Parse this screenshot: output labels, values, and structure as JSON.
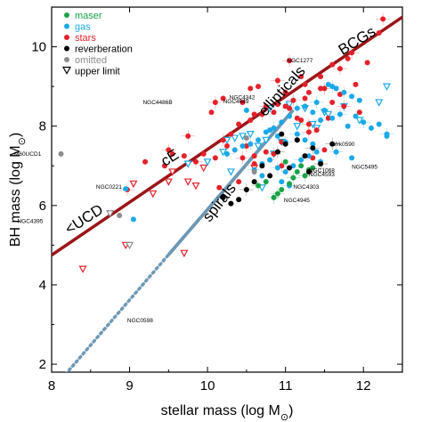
{
  "chart_data": {
    "type": "scatter",
    "xlabel": "stellar mass (log M",
    "ylabel": "BH mass (log M",
    "axis_unit_symbol": "⊙",
    "axis_unit_close": ")",
    "xlim": [
      8,
      12.5
    ],
    "ylim": [
      1.8,
      11
    ],
    "xticks": [
      8,
      9,
      10,
      11,
      12
    ],
    "yticks": [
      2,
      4,
      6,
      8,
      10
    ],
    "grid": false,
    "legend": {
      "position": "top-left",
      "entries": [
        {
          "label": "maser",
          "color": "#1aa34a",
          "marker": "circle"
        },
        {
          "label": "gas",
          "color": "#1aa9e8",
          "marker": "circle"
        },
        {
          "label": "stars",
          "color": "#e5202a",
          "marker": "circle"
        },
        {
          "label": "reverberation",
          "color": "#000000",
          "marker": "circle"
        },
        {
          "label": "omitted",
          "color": "#8c8c8c",
          "marker": "circle"
        },
        {
          "label": "upper limit",
          "color": "#000000",
          "marker": "triangle"
        }
      ]
    },
    "colors": {
      "maser": "#1aa34a",
      "gas": "#1aa9e8",
      "stars": "#e5202a",
      "reverberation": "#000000",
      "omitted": "#8c8c8c",
      "early_relation": "#9b1518",
      "late_relation": "#6d98b4"
    },
    "relations": [
      {
        "name": "early-type",
        "color": "#9b1518",
        "x": [
          8.0,
          12.5
        ],
        "y": [
          4.75,
          10.75
        ]
      },
      {
        "name": "late-type",
        "color": "#6d98b4",
        "solid_x": [
          9.5,
          11.1
        ],
        "dotted_x": [
          8.0,
          9.5
        ],
        "slope": 2.28,
        "intercept": -16.9
      }
    ],
    "region_labels": [
      {
        "text": "BCGs",
        "x": 11.95,
        "y": 10.05,
        "rotate": -32
      },
      {
        "text": "ellipticals",
        "x": 11.0,
        "y": 8.8,
        "rotate": -48
      },
      {
        "text": "cE",
        "x": 9.55,
        "y": 7.1,
        "rotate": -33
      },
      {
        "text": "<UCD",
        "x": 8.45,
        "y": 5.55,
        "rotate": -33
      },
      {
        "text": "spirals",
        "x": 10.2,
        "y": 6.0,
        "rotate": -52
      }
    ],
    "annotations": [
      {
        "text": "NGC1277",
        "x": 11.02,
        "y": 9.65
      },
      {
        "text": "NGC4486B",
        "x": 9.17,
        "y": 8.6
      },
      {
        "text": "NGC4649",
        "x": 10.2,
        "y": 8.62
      },
      {
        "text": "NGC4342",
        "x": 10.28,
        "y": 8.72
      },
      {
        "text": "M60UCD1",
        "x": 7.52,
        "y": 7.3
      },
      {
        "text": "NGC0221",
        "x": 8.57,
        "y": 6.47
      },
      {
        "text": "NGC4395",
        "x": 7.56,
        "y": 5.6
      },
      {
        "text": "NGC0598",
        "x": 8.97,
        "y": 3.1
      },
      {
        "text": "Mrk0590",
        "x": 11.6,
        "y": 7.55
      },
      {
        "text": "NGC5495",
        "x": 11.85,
        "y": 6.97
      },
      {
        "text": "NGC1068",
        "x": 11.3,
        "y": 6.88
      },
      {
        "text": "NGC4593",
        "x": 11.3,
        "y": 6.78
      },
      {
        "text": "NGC4303",
        "x": 11.1,
        "y": 6.47
      },
      {
        "text": "NGC4945",
        "x": 10.98,
        "y": 6.13
      }
    ],
    "series": [
      {
        "type": "stars",
        "x": [
          11.05,
          11.2,
          11.6,
          11.85,
          12.05,
          12.2,
          12.25,
          11.45,
          11.9,
          11.5,
          11.3,
          11.7,
          11.0,
          11.25,
          10.55,
          10.9,
          10.65,
          10.45,
          10.75,
          10.6,
          10.2,
          10.1,
          10.05,
          10.9,
          11.05,
          11.15,
          11.2,
          11.3,
          11.4,
          11.6,
          11.75,
          11.95,
          11.55,
          11.3,
          11.15,
          10.95,
          10.85,
          10.75,
          10.6,
          10.45,
          10.35,
          10.25,
          10.2,
          10.1,
          9.95,
          9.85,
          9.7,
          9.55,
          9.5,
          9.45,
          9.2,
          9.75,
          10.4,
          10.55,
          10.7,
          10.85,
          11.0,
          11.1,
          11.25,
          11.45,
          11.7,
          11.8,
          10.3,
          10.5,
          10.6,
          10.8,
          10.95,
          11.35,
          11.5,
          8.97,
          10.15,
          10.4
        ],
        "y": [
          9.65,
          9.25,
          9.55,
          9.85,
          9.6,
          10.35,
          10.7,
          9.25,
          9.05,
          8.95,
          8.85,
          8.8,
          8.85,
          9.05,
          8.95,
          9.15,
          9.0,
          8.6,
          8.5,
          8.3,
          8.7,
          8.6,
          8.35,
          8.55,
          8.45,
          8.2,
          8.15,
          8.05,
          7.9,
          8.6,
          8.5,
          8.35,
          8.2,
          7.85,
          7.65,
          7.6,
          7.3,
          7.35,
          7.25,
          7.2,
          7.4,
          7.5,
          7.65,
          7.2,
          7.3,
          7.1,
          7.25,
          7.3,
          7.4,
          7.0,
          7.1,
          7.75,
          8.05,
          8.15,
          8.3,
          8.35,
          8.5,
          8.65,
          8.7,
          8.95,
          9.45,
          9.7,
          7.8,
          7.5,
          7.05,
          7.15,
          7.0,
          7.2,
          7.4,
          6.4,
          6.45,
          6.6
        ]
      },
      {
        "type": "gas",
        "x": [
          11.4,
          11.5,
          11.6,
          11.7,
          11.8,
          11.9,
          12.0,
          12.1,
          12.2,
          12.3,
          11.95,
          11.85,
          11.75,
          11.65,
          11.55,
          11.45,
          11.35,
          11.25,
          11.15,
          11.05,
          10.95,
          10.85,
          10.75,
          10.65,
          10.55,
          10.45,
          10.35,
          10.25,
          10.7,
          10.8,
          10.9,
          11.0,
          11.1,
          11.2,
          11.3,
          11.4,
          11.0,
          10.9,
          10.8,
          11.15,
          11.25,
          11.35,
          10.6,
          10.7,
          10.95,
          11.05,
          8.95,
          9.05,
          11.6,
          12.3,
          11.85,
          11.65,
          10.5,
          11.45
        ],
        "y": [
          8.6,
          8.4,
          8.2,
          8.3,
          8.0,
          8.25,
          8.1,
          7.95,
          8.05,
          7.8,
          8.65,
          8.75,
          8.85,
          8.95,
          9.05,
          8.15,
          8.35,
          8.5,
          8.45,
          8.25,
          8.1,
          7.95,
          7.85,
          7.65,
          7.55,
          7.5,
          7.4,
          7.3,
          7.05,
          7.15,
          6.95,
          6.85,
          7.0,
          7.15,
          7.25,
          7.35,
          7.6,
          7.75,
          7.9,
          7.8,
          7.65,
          7.55,
          6.9,
          6.75,
          6.6,
          6.5,
          6.42,
          5.65,
          9.0,
          7.75,
          7.2,
          7.35,
          8.4,
          7.1
        ]
      },
      {
        "type": "maser",
        "x": [
          10.85,
          10.95,
          11.05,
          11.1,
          11.15,
          11.2,
          11.25,
          11.35,
          10.75,
          10.65,
          11.0,
          11.3,
          10.9
        ],
        "y": [
          6.2,
          6.4,
          6.55,
          6.7,
          6.85,
          7.0,
          6.75,
          6.95,
          6.6,
          6.5,
          7.1,
          6.9,
          6.3
        ]
      },
      {
        "type": "reverberation",
        "x": [
          11.6,
          11.3,
          11.0,
          10.9,
          11.15,
          11.25,
          11.45,
          10.7,
          10.8,
          10.5,
          10.4,
          10.3,
          10.2,
          10.6,
          11.05,
          11.35,
          10.95
        ],
        "y": [
          7.55,
          6.85,
          7.55,
          7.35,
          7.65,
          7.25,
          7.05,
          7.0,
          6.75,
          6.4,
          6.15,
          6.05,
          6.2,
          6.6,
          6.95,
          7.45,
          7.8
        ]
      },
      {
        "type": "omitted",
        "x": [
          8.12,
          8.87,
          10.5,
          10.6
        ],
        "y": [
          7.3,
          5.75,
          7.7,
          6.85
        ]
      }
    ],
    "upper_limits": {
      "x": [
        10.45,
        10.55,
        10.65,
        10.75,
        10.85,
        10.95,
        10.35,
        10.25,
        11.15,
        11.35,
        11.55,
        11.95,
        10.8,
        11.05,
        11.25,
        9.95,
        9.55,
        9.75,
        9.85,
        9.5,
        9.3,
        9.05,
        8.95,
        8.75,
        8.4,
        9.7,
        10.0,
        10.2,
        10.3,
        9.0,
        9.75,
        11.5,
        11.75,
        12.2,
        12.3,
        11.4,
        10.6,
        10.7
      ],
      "y": [
        7.75,
        7.8,
        7.5,
        7.65,
        7.3,
        7.6,
        7.7,
        7.65,
        8.0,
        8.05,
        8.3,
        8.15,
        8.45,
        8.55,
        8.45,
        6.95,
        6.85,
        6.6,
        6.5,
        6.6,
        6.3,
        6.55,
        5.0,
        5.8,
        4.4,
        4.8,
        7.1,
        7.35,
        6.85,
        5.0,
        7.05,
        8.35,
        8.5,
        8.6,
        9.0,
        7.95,
        6.95,
        6.45
      ],
      "colors": [
        "#1aa9e8",
        "#1aa9e8",
        "#1aa9e8",
        "#1aa9e8",
        "#1aa9e8",
        "#1aa9e8",
        "#1aa9e8",
        "#1aa9e8",
        "#1aa9e8",
        "#1aa9e8",
        "#1aa9e8",
        "#1aa9e8",
        "#1aa9e8",
        "#1aa9e8",
        "#1aa9e8",
        "#e5202a",
        "#e5202a",
        "#e5202a",
        "#e5202a",
        "#e5202a",
        "#e5202a",
        "#e5202a",
        "#e5202a",
        "#8c8c8c",
        "#e5202a",
        "#e5202a",
        "#1aa9e8",
        "#1aa9e8",
        "#1aa9e8",
        "#8c8c8c",
        "#1aa9e8",
        "#1aa9e8",
        "#1aa9e8",
        "#1aa9e8",
        "#1aa9e8",
        "#1aa9e8",
        "#e5202a",
        "#1aa9e8"
      ]
    }
  }
}
